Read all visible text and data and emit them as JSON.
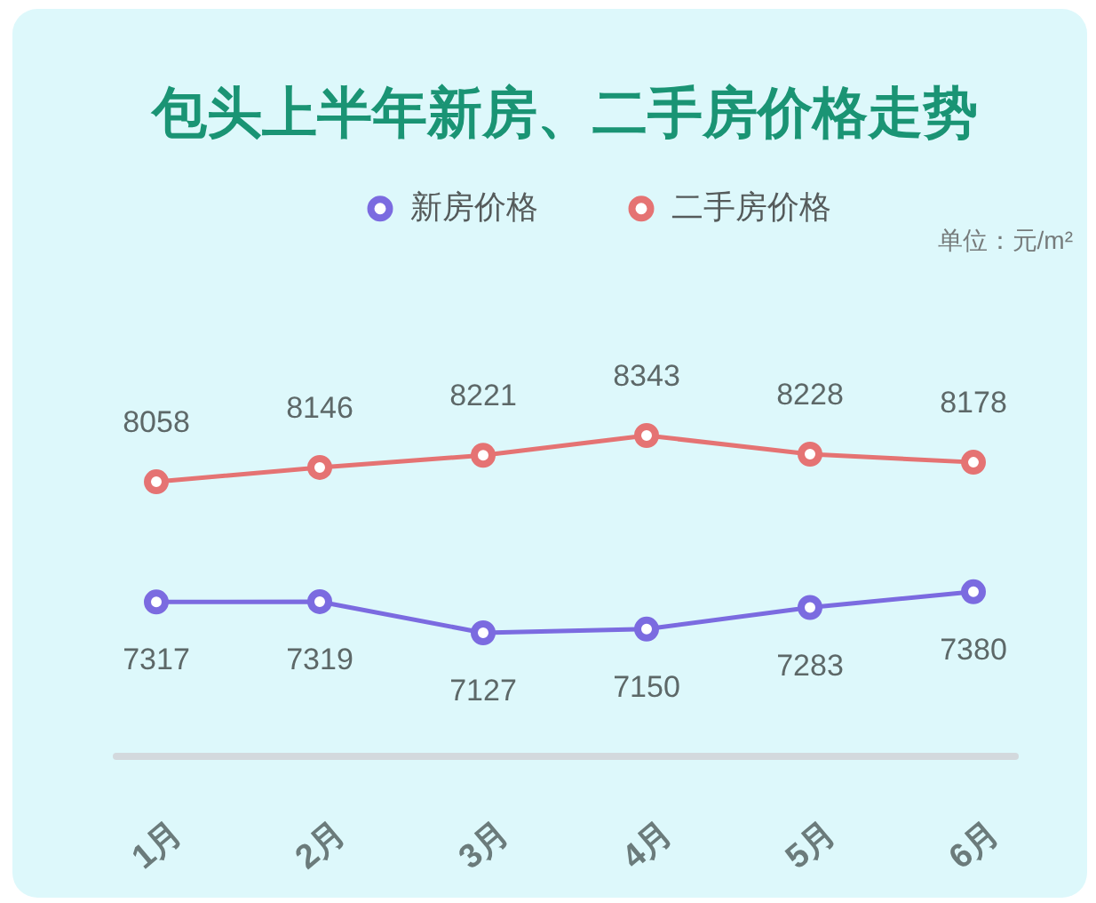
{
  "chart_data": {
    "type": "line",
    "title": "包头上半年新房、二手房价格走势",
    "annotations": [
      "单位：元/m²"
    ],
    "categories": [
      "1月",
      "2月",
      "3月",
      "4月",
      "5月",
      "6月"
    ],
    "series": [
      {
        "name": "新房价格",
        "color": "#7b6be0",
        "values": [
          7317,
          7319,
          7127,
          7150,
          7283,
          7380
        ]
      },
      {
        "name": "二手房价格",
        "color": "#e57373",
        "values": [
          8058,
          8146,
          8221,
          8343,
          8228,
          8178
        ]
      }
    ],
    "tick_labels": "x",
    "legend": "top",
    "marker": "circle",
    "data_labels": true
  }
}
